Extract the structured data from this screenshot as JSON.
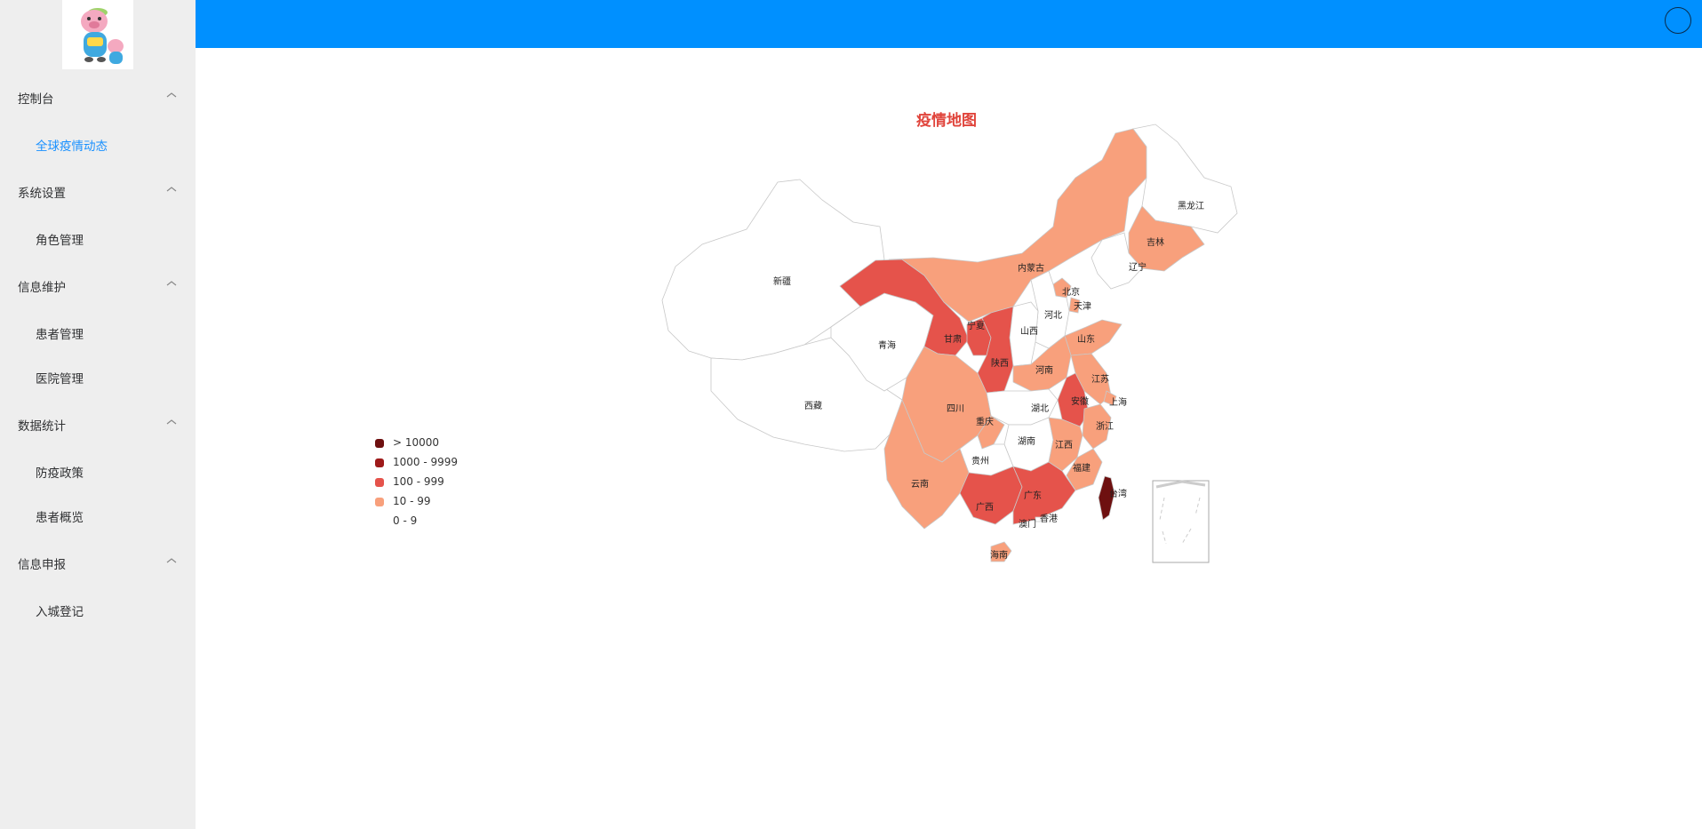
{
  "sidebar": {
    "groups": [
      {
        "label": "控制台",
        "items": [
          {
            "label": "全球疫情动态",
            "active": true
          }
        ]
      },
      {
        "label": "系统设置",
        "items": [
          {
            "label": "角色管理",
            "active": false
          }
        ]
      },
      {
        "label": "信息维护",
        "items": [
          {
            "label": "患者管理",
            "active": false
          },
          {
            "label": "医院管理",
            "active": false
          }
        ]
      },
      {
        "label": "数据统计",
        "items": [
          {
            "label": "防疫政策",
            "active": false
          },
          {
            "label": "患者概览",
            "active": false
          }
        ]
      },
      {
        "label": "信息申报",
        "items": [
          {
            "label": "入城登记",
            "active": false
          }
        ]
      }
    ]
  },
  "header": {
    "avatar_icon": "user-avatar-circle-icon"
  },
  "map": {
    "title": "疫情地图",
    "legend": [
      {
        "label": "> 10000",
        "color": "#6e1010"
      },
      {
        "label": "1000 - 9999",
        "color": "#9e1a1a"
      },
      {
        "label": "100 - 999",
        "color": "#e5534b"
      },
      {
        "label": "10 - 99",
        "color": "#f8a07c"
      },
      {
        "label": "0 - 9",
        "color": "#ffffff"
      }
    ],
    "provinces": [
      {
        "name": "新疆",
        "level": "0 - 9"
      },
      {
        "name": "西藏",
        "level": "0 - 9"
      },
      {
        "name": "青海",
        "level": "0 - 9"
      },
      {
        "name": "甘肃",
        "level": "100 - 999"
      },
      {
        "name": "宁夏",
        "level": "100 - 999"
      },
      {
        "name": "内蒙古",
        "level": "10 - 99"
      },
      {
        "name": "黑龙江",
        "level": "0 - 9"
      },
      {
        "name": "吉林",
        "level": "10 - 99"
      },
      {
        "name": "辽宁",
        "level": "0 - 9"
      },
      {
        "name": "北京",
        "level": "10 - 99"
      },
      {
        "name": "天津",
        "level": "10 - 99"
      },
      {
        "name": "河北",
        "level": "0 - 9"
      },
      {
        "name": "山西",
        "level": "0 - 9"
      },
      {
        "name": "陕西",
        "level": "100 - 999"
      },
      {
        "name": "山东",
        "level": "10 - 99"
      },
      {
        "name": "河南",
        "level": "10 - 99"
      },
      {
        "name": "江苏",
        "level": "10 - 99"
      },
      {
        "name": "安徽",
        "level": "100 - 999"
      },
      {
        "name": "上海",
        "level": "10 - 99"
      },
      {
        "name": "湖北",
        "level": "0 - 9"
      },
      {
        "name": "四川",
        "level": "10 - 99"
      },
      {
        "name": "重庆",
        "level": "10 - 99"
      },
      {
        "name": "浙江",
        "level": "10 - 99"
      },
      {
        "name": "湖南",
        "level": "0 - 9"
      },
      {
        "name": "江西",
        "level": "10 - 99"
      },
      {
        "name": "贵州",
        "level": "0 - 9"
      },
      {
        "name": "福建",
        "level": "10 - 99"
      },
      {
        "name": "云南",
        "level": "10 - 99"
      },
      {
        "name": "广西",
        "level": "100 - 999"
      },
      {
        "name": "广东",
        "level": "100 - 999"
      },
      {
        "name": "台湾",
        "level": "> 10000"
      },
      {
        "name": "澳门",
        "level": "0 - 9"
      },
      {
        "name": "香港",
        "level": "0 - 9"
      },
      {
        "name": "海南",
        "level": "10 - 99"
      },
      {
        "name": "南海诸岛",
        "level": "0 - 9"
      }
    ]
  }
}
